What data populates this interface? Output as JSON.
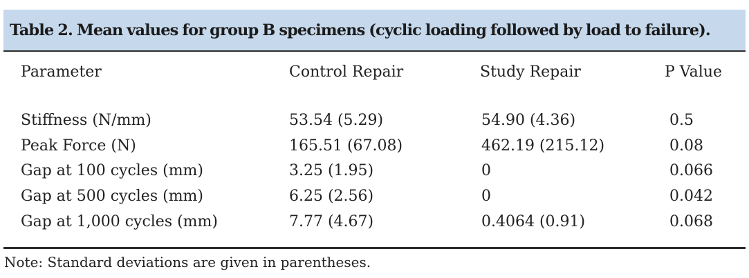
{
  "table": {
    "title": "Table 2. Mean values for group B specimens (cyclic loading followed by load to failure).",
    "headers": [
      "Parameter",
      "Control Repair",
      "Study Repair",
      "P Value"
    ],
    "rows": [
      [
        "Stiffness (N/mm)",
        "53.54 (5.29)",
        "54.90 (4.36)",
        "0.5"
      ],
      [
        "Peak Force (N)",
        "165.51 (67.08)",
        "462.19 (215.12)",
        "0.08"
      ],
      [
        "Gap at 100 cycles (mm)",
        "3.25 (1.95)",
        "0",
        "0.066"
      ],
      [
        "Gap at 500 cycles (mm)",
        "6.25 (2.56)",
        "0",
        "0.042"
      ],
      [
        "Gap at 1,000 cycles (mm)",
        "7.77 (4.67)",
        "0.4064 (0.91)",
        "0.068"
      ]
    ],
    "note": "Note: Standard deviations are given in parentheses.",
    "title_background": "#c6d9ec",
    "rule_color": "#2b2b2b"
  }
}
